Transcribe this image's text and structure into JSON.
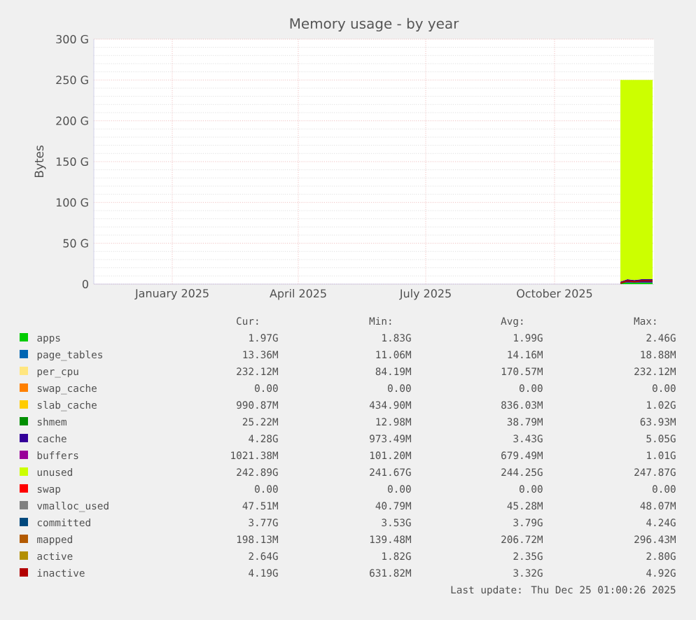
{
  "chart_data": {
    "type": "area",
    "title": "Memory usage - by year",
    "ylabel": "Bytes",
    "stacked": true,
    "grid": true,
    "legend": "bottom",
    "x": [
      "2025-12-01",
      "2025-12-06",
      "2025-12-11",
      "2025-12-16",
      "2025-12-21",
      "2025-12-24"
    ],
    "xlim": [
      "2024-11-20",
      "2025-12-25"
    ],
    "xticks": [
      {
        "value": "2025-01-15",
        "label": "January 2025"
      },
      {
        "value": "2025-04-15",
        "label": "April 2025"
      },
      {
        "value": "2025-07-15",
        "label": "July 2025"
      },
      {
        "value": "2025-10-15",
        "label": "October 2025"
      }
    ],
    "ylim": [
      0,
      300
    ],
    "yticks": [
      0,
      {
        "value": 50,
        "label": "50 G"
      },
      {
        "value": 100,
        "label": "100 G"
      },
      {
        "value": 150,
        "label": "150 G"
      },
      {
        "value": 200,
        "label": "200 G"
      },
      {
        "value": 250,
        "label": "250 G"
      },
      {
        "value": 300,
        "label": "300 G"
      }
    ],
    "series": [
      {
        "name": "apps",
        "color": "#00cc00",
        "values": [
          2,
          2,
          2,
          2,
          2,
          2
        ]
      },
      {
        "name": "page_tables",
        "color": "#0066b3",
        "values": [
          null,
          null,
          null,
          null,
          null,
          null
        ]
      },
      {
        "name": "per_cpu",
        "color": "#ffe680",
        "values": [
          null,
          null,
          null,
          null,
          null,
          null
        ]
      },
      {
        "name": "swap_cache",
        "color": "#ff8000",
        "values": [
          null,
          null,
          null,
          null,
          null,
          null
        ]
      },
      {
        "name": "slab_cache",
        "color": "#ffcc00",
        "values": [
          null,
          null,
          null,
          null,
          null,
          null
        ]
      },
      {
        "name": "shmem",
        "color": "#008f00",
        "values": [
          null,
          null,
          null,
          null,
          null,
          null
        ]
      },
      {
        "name": "cache",
        "color": "#330099",
        "values": [
          1,
          4,
          3,
          4,
          4,
          4
        ]
      },
      {
        "name": "buffers",
        "color": "#990099",
        "values": [
          null,
          null,
          null,
          null,
          null,
          null
        ]
      },
      {
        "name": "unused",
        "color": "#ccff00",
        "values": [
          247,
          244,
          245,
          244,
          244,
          244
        ]
      },
      {
        "name": "swap",
        "color": "#ff0000",
        "values": [
          null,
          null,
          null,
          null,
          null,
          null
        ]
      },
      {
        "name": "vmalloc_used",
        "color": "#808080",
        "type": "line",
        "values": [
          null,
          null,
          null,
          null,
          null,
          null
        ]
      },
      {
        "name": "committed",
        "color": "#00487d",
        "type": "line",
        "values": [
          null,
          null,
          null,
          null,
          null,
          null
        ]
      },
      {
        "name": "mapped",
        "color": "#b35a00",
        "type": "line",
        "values": [
          null,
          null,
          null,
          null,
          null,
          null
        ]
      },
      {
        "name": "active",
        "color": "#b38f00",
        "type": "line",
        "values": [
          null,
          null,
          null,
          null,
          null,
          null
        ]
      },
      {
        "name": "inactive",
        "color": "#b30000",
        "type": "line",
        "values": [
          1,
          4,
          3,
          4,
          4,
          4
        ]
      }
    ],
    "annotations": [
      "Cur:",
      "Min:",
      "Avg:",
      "Max:",
      "1.97G",
      "1.83G",
      "1.99G",
      "2.46G",
      "13.36M",
      "11.06M",
      "14.16M",
      "18.88M",
      "232.12M",
      "84.19M",
      "170.57M",
      "232.12M",
      "0.00",
      "0.00",
      "0.00",
      "0.00",
      "990.87M",
      "434.90M",
      "836.03M",
      "1.02G",
      "25.22M",
      "12.98M",
      "38.79M",
      "63.93M",
      "4.28G",
      "973.49M",
      "3.43G",
      "5.05G",
      "1021.38M",
      "101.20M",
      "679.49M",
      "1.01G",
      "242.89G",
      "241.67G",
      "244.25G",
      "247.87G",
      "0.00",
      "0.00",
      "0.00",
      "0.00",
      "47.51M",
      "40.79M",
      "45.28M",
      "48.07M",
      "3.77G",
      "3.53G",
      "3.79G",
      "4.24G",
      "198.13M",
      "139.48M",
      "206.72M",
      "296.43M",
      "2.64G",
      "1.82G",
      "2.35G",
      "2.80G",
      "4.19G",
      "631.82M",
      "3.32G",
      "4.92G",
      "Last update: Thu Dec 25 01:00:26 2025"
    ]
  }
}
